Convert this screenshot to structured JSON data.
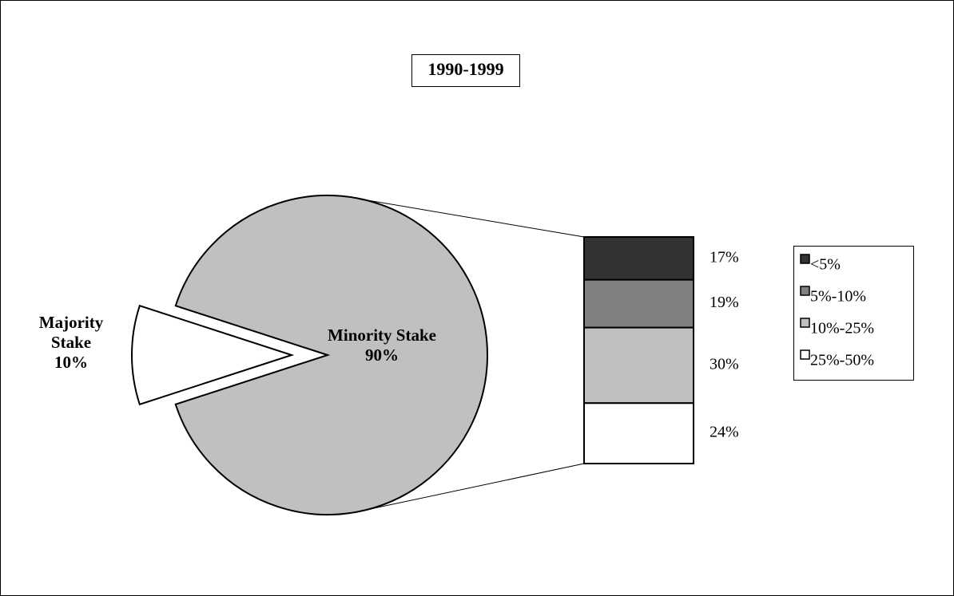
{
  "chart_data": [
    {
      "type": "pie",
      "title": "1990-1999",
      "categories": [
        "Majority Stake",
        "Minority Stake"
      ],
      "values": [
        10,
        90
      ],
      "value_labels": [
        "10%",
        "90%"
      ],
      "colors": [
        "#ffffff",
        "#c0c0c0"
      ]
    },
    {
      "type": "stacked-bar",
      "series": [
        {
          "name": "<5%",
          "color": "#333333",
          "values": [
            17
          ],
          "value_labels": [
            "17%"
          ]
        },
        {
          "name": "5%-10%",
          "color": "#808080",
          "values": [
            19
          ],
          "value_labels": [
            "19%"
          ]
        },
        {
          "name": "10%-25%",
          "color": "#c0c0c0",
          "values": [
            30
          ],
          "value_labels": [
            "30%"
          ]
        },
        {
          "name": "25%-50%",
          "color": "#ffffff",
          "values": [
            24
          ],
          "value_labels": [
            "24%"
          ]
        }
      ]
    }
  ]
}
